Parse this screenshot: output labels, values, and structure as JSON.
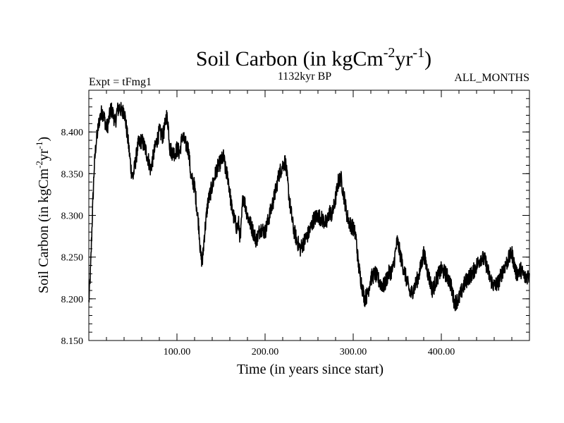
{
  "chart_data": {
    "type": "line",
    "title": "Soil Carbon (in kgCm",
    "title_sup1": "-2",
    "title_mid": "yr",
    "title_sup2": "-1",
    "title_end": ")",
    "left_label": "Expt = tFmg1",
    "center_label": "1132kyr BP",
    "right_label": "ALL_MONTHS",
    "xlabel": "Time (in years since start)",
    "ylabel": "Soil Carbon (in kgCm",
    "ylabel_sup1": "-2",
    "ylabel_mid": "yr",
    "ylabel_sup2": "-1",
    "ylabel_end": ")",
    "xlim": [
      0,
      500
    ],
    "ylim": [
      8.15,
      8.45
    ],
    "x_ticks": [
      {
        "value": 100,
        "label": "100.00"
      },
      {
        "value": 200,
        "label": "200.00"
      },
      {
        "value": 300,
        "label": "300.00"
      },
      {
        "value": 400,
        "label": "400.00"
      }
    ],
    "y_ticks": [
      {
        "value": 8.15,
        "label": "8.150"
      },
      {
        "value": 8.2,
        "label": "8.200"
      },
      {
        "value": 8.25,
        "label": "8.250"
      },
      {
        "value": 8.3,
        "label": "8.300"
      },
      {
        "value": 8.35,
        "label": "8.350"
      },
      {
        "value": 8.4,
        "label": "8.400"
      }
    ],
    "series": [
      {
        "name": "Soil Carbon",
        "color": "#000000",
        "x": [
          0,
          2,
          4,
          6,
          8,
          10,
          12,
          15,
          18,
          20,
          22,
          25,
          28,
          30,
          32,
          35,
          38,
          40,
          42,
          45,
          48,
          50,
          53,
          56,
          60,
          64,
          68,
          70,
          73,
          76,
          80,
          84,
          86,
          88,
          90,
          92,
          95,
          98,
          100,
          103,
          106,
          110,
          113,
          116,
          120,
          122,
          125,
          127,
          129,
          131,
          135,
          140,
          145,
          150,
          153,
          155,
          158,
          162,
          165,
          168,
          170,
          172,
          175,
          180,
          185,
          190,
          195,
          200,
          205,
          210,
          213,
          216,
          220,
          223,
          225,
          228,
          232,
          236,
          240,
          245,
          250,
          255,
          260,
          265,
          270,
          273,
          276,
          280,
          283,
          286,
          290,
          293,
          296,
          300,
          303,
          306,
          310,
          313,
          316,
          320,
          325,
          330,
          335,
          340,
          345,
          350,
          355,
          360,
          365,
          370,
          375,
          380,
          385,
          390,
          395,
          400,
          405,
          410,
          415,
          420,
          425,
          430,
          435,
          440,
          445,
          450,
          455,
          460,
          465,
          470,
          475,
          480,
          485,
          490,
          495,
          500
        ],
        "y": [
          8.195,
          8.235,
          8.3,
          8.355,
          8.385,
          8.4,
          8.415,
          8.425,
          8.415,
          8.405,
          8.41,
          8.428,
          8.42,
          8.41,
          8.425,
          8.43,
          8.422,
          8.428,
          8.41,
          8.385,
          8.355,
          8.345,
          8.365,
          8.385,
          8.39,
          8.38,
          8.365,
          8.355,
          8.37,
          8.385,
          8.4,
          8.395,
          8.405,
          8.42,
          8.41,
          8.38,
          8.375,
          8.375,
          8.38,
          8.375,
          8.395,
          8.385,
          8.38,
          8.345,
          8.335,
          8.315,
          8.285,
          8.25,
          8.245,
          8.275,
          8.315,
          8.335,
          8.355,
          8.365,
          8.37,
          8.355,
          8.345,
          8.31,
          8.295,
          8.285,
          8.29,
          8.27,
          8.325,
          8.3,
          8.285,
          8.27,
          8.285,
          8.28,
          8.3,
          8.32,
          8.335,
          8.35,
          8.36,
          8.365,
          8.345,
          8.315,
          8.285,
          8.27,
          8.26,
          8.27,
          8.28,
          8.295,
          8.3,
          8.295,
          8.29,
          8.305,
          8.3,
          8.32,
          8.34,
          8.345,
          8.32,
          8.3,
          8.29,
          8.285,
          8.275,
          8.24,
          8.215,
          8.2,
          8.205,
          8.225,
          8.23,
          8.22,
          8.215,
          8.23,
          8.235,
          8.27,
          8.245,
          8.225,
          8.205,
          8.215,
          8.23,
          8.255,
          8.23,
          8.21,
          8.225,
          8.235,
          8.23,
          8.22,
          8.195,
          8.2,
          8.215,
          8.225,
          8.23,
          8.24,
          8.25,
          8.245,
          8.225,
          8.215,
          8.22,
          8.235,
          8.245,
          8.255,
          8.23,
          8.235,
          8.225,
          8.23
        ]
      }
    ]
  }
}
